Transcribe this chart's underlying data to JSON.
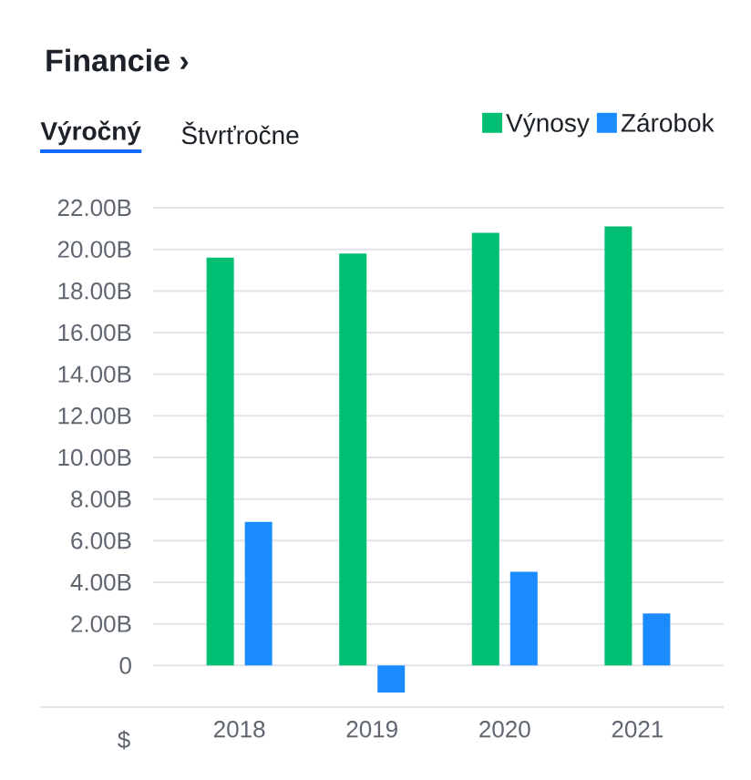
{
  "chart_data": {
    "type": "bar",
    "title": "Financie ›",
    "ylabel": "$",
    "annotations": [
      "Výročný",
      "Štvrťročne"
    ],
    "categories": [
      "2018",
      "2019",
      "2020",
      "2021"
    ],
    "series": [
      {
        "name": "Výnosy",
        "color": "#00bf72",
        "values": [
          19.6,
          19.8,
          20.8,
          21.1
        ]
      },
      {
        "name": "Zárobok",
        "color": "#1a8cff",
        "values": [
          6.9,
          -1.3,
          4.5,
          2.5
        ]
      }
    ],
    "ylim": [
      -2,
      22
    ],
    "yticks": [
      0,
      {
        "value": 2,
        "label": "2.00B"
      },
      {
        "value": 4,
        "label": "4.00B"
      },
      {
        "value": 6,
        "label": "6.00B"
      },
      {
        "value": 8,
        "label": "8.00B"
      },
      {
        "value": 10,
        "label": "10.00B"
      },
      {
        "value": 12,
        "label": "12.00B"
      },
      {
        "value": 14,
        "label": "14.00B"
      },
      {
        "value": 16,
        "label": "16.00B"
      },
      {
        "value": 18,
        "label": "18.00B"
      },
      {
        "value": 20,
        "label": "20.00B"
      },
      {
        "value": 22,
        "label": "22.00B"
      }
    ],
    "grid": "y",
    "legend": "top right"
  }
}
